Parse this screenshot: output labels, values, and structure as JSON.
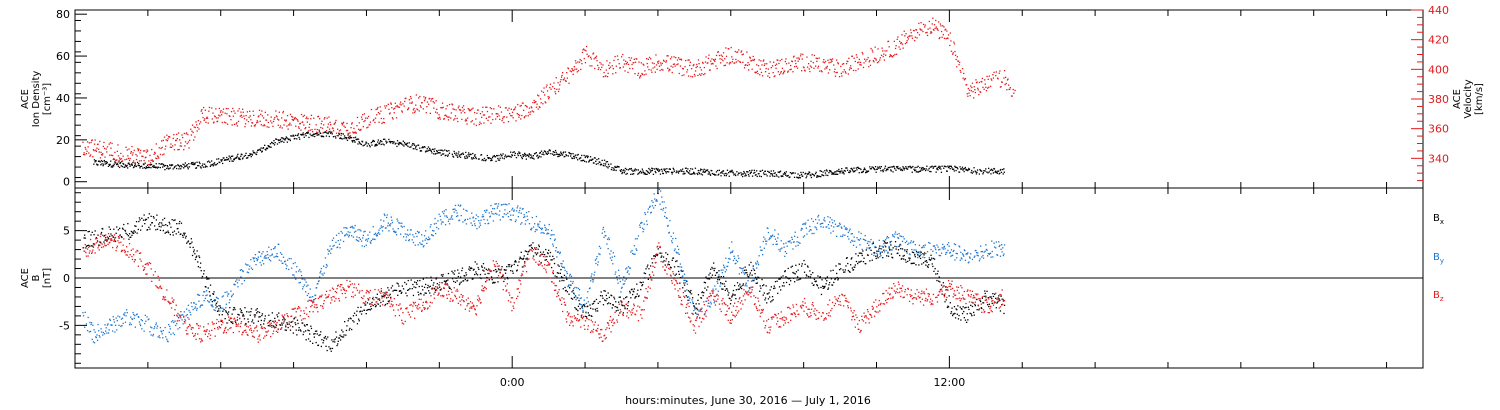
{
  "chart_data": [
    {
      "type": "scatter",
      "panel": "top",
      "ylabel": [
        "ACE",
        "Ion Density",
        "[cm⁻³]"
      ],
      "ylim": [
        -3,
        82
      ],
      "yticks": [
        0,
        20,
        40,
        60,
        80
      ],
      "y2label": [
        "ACE",
        "Velocity",
        "[km/s]"
      ],
      "y2lim": [
        320,
        440
      ],
      "y2ticks": [
        340,
        360,
        380,
        400,
        420,
        440
      ],
      "grid": false,
      "series": [
        {
          "name": "",
          "axis": "left",
          "color": "#000000",
          "x": [
            -11.5,
            -10.5,
            -9.5,
            -8.5,
            -8,
            -7,
            -6.5,
            -6,
            -5.5,
            -5,
            -4.5,
            -4,
            -3.5,
            -3,
            -2.5,
            -2,
            -1.5,
            -1,
            -0.5,
            0,
            0.5,
            1,
            1.5,
            2,
            2.5,
            3,
            4,
            5,
            6,
            7,
            8,
            9,
            10,
            11,
            12,
            13,
            13.5
          ],
          "y": [
            9,
            8,
            7,
            8,
            10,
            14,
            19,
            21,
            23,
            23,
            21,
            18,
            19,
            18,
            16,
            14,
            13,
            12,
            11,
            13,
            12,
            14,
            13,
            11,
            9,
            5,
            5,
            5,
            4,
            4,
            3,
            5,
            6,
            6,
            6,
            5,
            5
          ]
        },
        {
          "name": "",
          "axis": "right",
          "color": "#e41a1c",
          "x": [
            -11.8,
            -11,
            -10,
            -9.5,
            -8.9,
            -8.5,
            -8,
            -7,
            -6,
            -5,
            -4.5,
            -4,
            -3.5,
            -3,
            -2.5,
            -2,
            -1.5,
            -1,
            -0.5,
            0,
            0.5,
            1,
            1.5,
            2,
            2.5,
            3,
            3.5,
            4,
            5,
            6,
            7,
            8,
            9,
            10,
            10.5,
            11,
            11.5,
            12,
            12.5,
            13,
            13.5,
            13.8
          ],
          "y": [
            348,
            345,
            340,
            350,
            352,
            370,
            368,
            367,
            365,
            362,
            360,
            366,
            370,
            375,
            378,
            372,
            370,
            368,
            370,
            370,
            375,
            385,
            395,
            410,
            400,
            405,
            400,
            405,
            400,
            410,
            400,
            405,
            400,
            410,
            415,
            425,
            430,
            420,
            385,
            390,
            395,
            380
          ]
        }
      ]
    },
    {
      "type": "scatter",
      "panel": "bottom",
      "ylabel": [
        "ACE",
        "B",
        "[nT]"
      ],
      "ylim": [
        -9.5,
        9.5
      ],
      "yticks": [
        -5,
        0,
        5
      ],
      "zero_line": true,
      "grid": false,
      "legend": [
        "B",
        "B",
        "B"
      ],
      "legend_sub": [
        "x",
        "y",
        "z"
      ],
      "legend_colors": [
        "#000000",
        "#1f77d0",
        "#e41a1c"
      ],
      "legend_position": "right",
      "series": [
        {
          "name": "Bx",
          "color": "#000000",
          "x": [
            -11.8,
            -10.5,
            -10,
            -9,
            -8,
            -7,
            -6,
            -5,
            -4.5,
            -4,
            -3.5,
            -3,
            -2.5,
            -2,
            -1.5,
            -1,
            -0.5,
            0,
            0.5,
            1,
            1.5,
            2,
            2.5,
            3,
            3.5,
            4,
            4.5,
            5,
            5.5,
            6,
            6.5,
            7,
            7.5,
            8,
            8.5,
            9,
            9.5,
            10,
            10.5,
            11,
            11.5,
            12,
            12.5,
            13,
            13.5
          ],
          "y": [
            4,
            5,
            6,
            5,
            -4,
            -4,
            -5,
            -7,
            -5,
            -3,
            -2,
            -1,
            -1,
            -0.5,
            0,
            1,
            0,
            1,
            3,
            2,
            -1,
            -4,
            -2,
            -3,
            -1,
            3,
            1,
            -3,
            1,
            -2,
            1,
            -2,
            0,
            1,
            -1,
            1,
            2,
            3,
            3,
            2,
            2,
            -3,
            -4,
            -2,
            -3
          ]
        },
        {
          "name": "By",
          "color": "#1f77d0",
          "x": [
            -11.8,
            -11.5,
            -10.5,
            -10,
            -9.5,
            -9,
            -8.5,
            -8,
            -7.5,
            -7,
            -6.5,
            -6,
            -5.5,
            -5,
            -4.5,
            -4,
            -3.5,
            -3,
            -2.5,
            -2,
            -1.5,
            -1,
            -0.5,
            0,
            0.5,
            1,
            1.5,
            2,
            2.5,
            3,
            3.5,
            4,
            4.5,
            5,
            5.5,
            6,
            6.5,
            7,
            7.5,
            8,
            8.5,
            9,
            9.5,
            10,
            10.5,
            11,
            11.5,
            12,
            12.5,
            13,
            13.5
          ],
          "y": [
            -4,
            -6,
            -4,
            -5,
            -6,
            -4,
            -2,
            -3,
            0,
            2,
            3,
            1,
            -2,
            3,
            5,
            4,
            6,
            5,
            4,
            6,
            7,
            6,
            7,
            7,
            6,
            5,
            0,
            -3,
            5,
            -1,
            5,
            9,
            3,
            -4,
            -2,
            3,
            -1,
            5,
            3,
            5,
            6,
            5,
            4,
            3,
            4,
            3,
            3,
            3,
            2,
            3,
            3
          ]
        },
        {
          "name": "Bz",
          "color": "#e41a1c",
          "x": [
            -11.8,
            -11,
            -10.5,
            -10,
            -9.5,
            -9,
            -8.5,
            -8,
            -7.5,
            -7,
            -6.5,
            -6,
            -5.5,
            -5,
            -4.5,
            -4,
            -3.5,
            -3,
            -2.5,
            -2,
            -1.5,
            -1,
            -0.5,
            0,
            0.5,
            1,
            1.5,
            2,
            2.5,
            3,
            3.5,
            4,
            4.5,
            5,
            5.5,
            6,
            6.5,
            7,
            7.5,
            8,
            8.5,
            9,
            9.5,
            10,
            10.5,
            11,
            11.5,
            12,
            12.5,
            13,
            13.5
          ],
          "y": [
            3,
            4,
            3,
            1,
            -2,
            -5,
            -6,
            -5,
            -5,
            -6,
            -5,
            -4,
            -3,
            -2,
            -1,
            -2,
            -2,
            -4,
            -3,
            -1,
            -2,
            -3,
            2,
            -3,
            3,
            1,
            -4,
            -5,
            -6,
            -3,
            -4,
            3,
            -1,
            -5,
            -2,
            -4,
            -1,
            -5,
            -4,
            -3,
            -4,
            -2,
            -5,
            -3,
            -1,
            -2,
            -2,
            -1,
            -2,
            -3,
            -2
          ]
        }
      ]
    }
  ],
  "x_axis": {
    "range": [
      -12,
      25
    ],
    "major_ticks": [
      0,
      12
    ],
    "tick_labels": [
      "0:00",
      "12:00"
    ],
    "minor_step": 2,
    "title": "hours:minutes, June 30, 2016 — July  1, 2016"
  }
}
